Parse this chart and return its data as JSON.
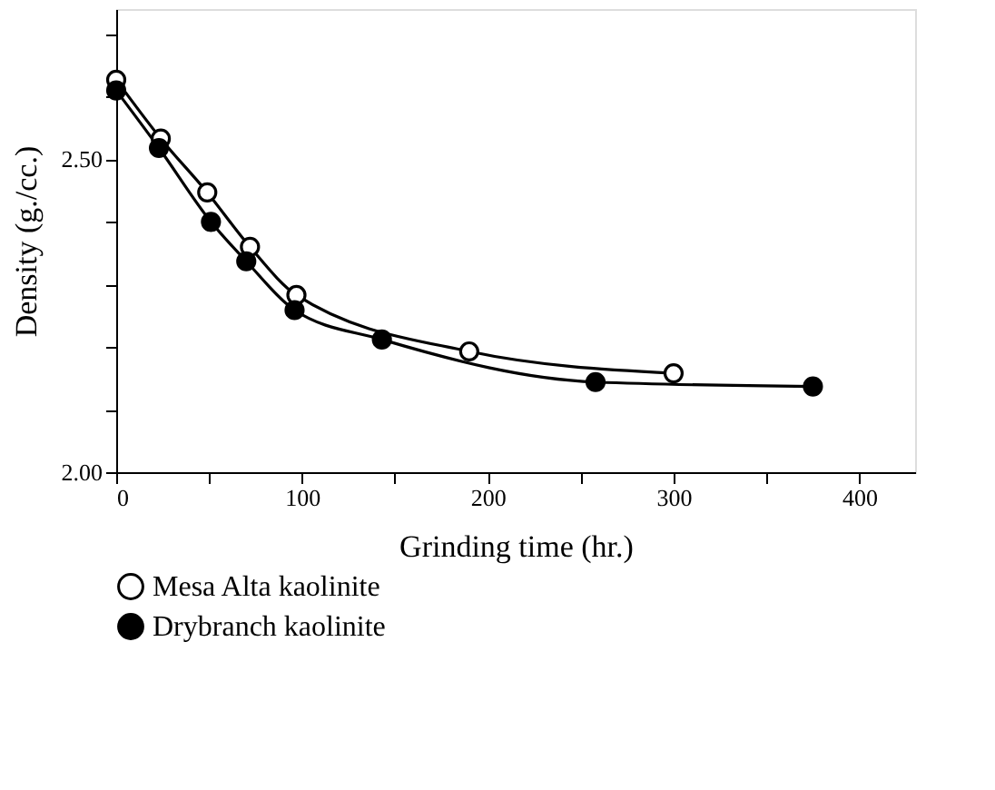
{
  "chart_data": {
    "type": "line",
    "xlabel": "Grinding time (hr.)",
    "ylabel": "Density (g./cc.)",
    "xlim": [
      0,
      430
    ],
    "ylim": [
      2.0,
      2.74
    ],
    "xticks": [
      0,
      {
        "value": 50,
        "label": null
      },
      100,
      {
        "value": 150,
        "label": null
      },
      200,
      {
        "value": 250,
        "label": null
      },
      300,
      {
        "value": 350,
        "label": null
      },
      400
    ],
    "yticks": [
      {
        "value": 2.0,
        "label": "2.00"
      },
      {
        "value": 2.1,
        "label": null
      },
      {
        "value": 2.2,
        "label": null
      },
      {
        "value": 2.3,
        "label": null
      },
      {
        "value": 2.4,
        "label": null
      },
      {
        "value": 2.5,
        "label": "2.50"
      },
      {
        "value": 2.6,
        "label": null
      },
      {
        "value": 2.7,
        "label": null
      }
    ],
    "grid": false,
    "legend": "bottom",
    "marker": "circle",
    "line_style": "solid",
    "series": [
      {
        "name": "Mesa Alta kaolinite",
        "color": "#ffffff",
        "x": [
          0,
          24,
          49,
          72,
          97,
          190,
          300
        ],
        "values": [
          2.627,
          2.533,
          2.447,
          2.36,
          2.283,
          2.193,
          2.158
        ]
      },
      {
        "name": "Drybranch kaolinite",
        "color": "#000000",
        "x": [
          0,
          23,
          51,
          70,
          96,
          143,
          258,
          375
        ],
        "values": [
          2.61,
          2.518,
          2.4,
          2.337,
          2.259,
          2.212,
          2.144,
          2.137
        ]
      }
    ]
  }
}
